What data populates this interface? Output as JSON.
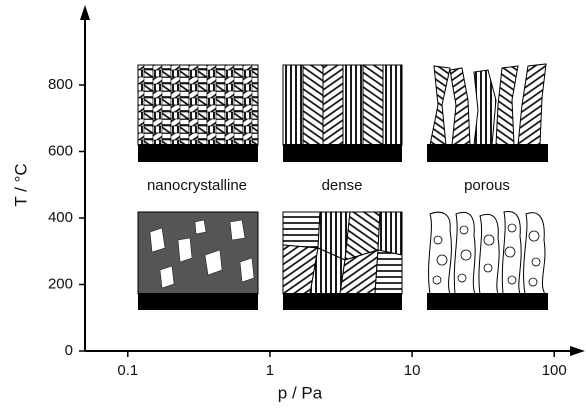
{
  "chart_data": {
    "type": "zone-diagram",
    "xlabel": "p / Pa",
    "ylabel": "T / °C",
    "xlim": [
      0.05,
      140
    ],
    "xscale": "log",
    "xticks": [
      0.1,
      1,
      10,
      100
    ],
    "ylim": [
      0,
      1000
    ],
    "yticks": [
      0,
      200,
      400,
      600,
      800
    ],
    "zones": [
      "nanocrystalline",
      "dense",
      "porous"
    ]
  }
}
